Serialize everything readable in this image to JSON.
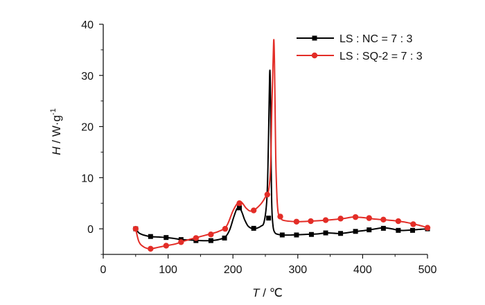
{
  "chart_data": {
    "type": "line",
    "title": "",
    "xlabel": {
      "var": "T",
      "unit": " / ℃"
    },
    "ylabel": {
      "var": "H",
      "unit": " / W·g",
      "sup": "-1"
    },
    "xlim": [
      0,
      500
    ],
    "ylim": [
      -5,
      40
    ],
    "xticks": [
      0,
      100,
      200,
      300,
      400,
      500
    ],
    "yticks": [
      0,
      10,
      20,
      30,
      40
    ],
    "grid": false,
    "legend_position": "top-right",
    "series": [
      {
        "name": "LS : NC = 7 : 3",
        "color": "#000000",
        "marker": "square",
        "x": [
          50,
          55,
          62,
          72,
          85,
          97,
          110,
          120,
          135,
          150,
          165,
          178,
          188,
          195,
          201,
          206,
          210,
          214,
          218,
          223,
          229,
          236,
          243,
          248,
          252,
          254,
          256,
          257,
          258,
          259,
          260,
          262,
          265,
          270,
          275,
          290,
          310,
          330,
          345,
          365,
          385,
          405,
          420,
          432,
          445,
          456,
          468,
          478,
          490,
          500
        ],
        "y": [
          0,
          -0.8,
          -1.2,
          -1.5,
          -1.6,
          -1.7,
          -1.9,
          -2.1,
          -2.2,
          -2.3,
          -2.3,
          -2.1,
          -1.6,
          -0.2,
          2.2,
          3.9,
          4.2,
          3.2,
          1.8,
          0.6,
          0.1,
          0.1,
          0.5,
          1.3,
          5.2,
          12.0,
          26.0,
          31.0,
          25.0,
          12.0,
          4.0,
          0.4,
          -0.8,
          -1.1,
          -1.2,
          -1.2,
          -1.1,
          -1.0,
          -0.8,
          -0.9,
          -0.6,
          -0.3,
          0.0,
          0.2,
          0.0,
          -0.3,
          -0.3,
          -0.2,
          -0.1,
          0.0
        ],
        "marker_x": [
          50,
          73,
          97,
          120,
          143,
          166,
          187,
          210,
          232,
          255,
          276,
          298,
          321,
          343,
          366,
          389,
          410,
          432,
          455,
          477,
          500
        ],
        "marker_y": [
          0,
          -1.5,
          -1.7,
          -2.1,
          -2.3,
          -2.3,
          -1.8,
          4.1,
          0.1,
          2.1,
          -1.2,
          -1.2,
          -1.1,
          -0.8,
          -0.9,
          -0.5,
          -0.2,
          0.1,
          -0.3,
          -0.3,
          0.0
        ]
      },
      {
        "name": "LS : SQ-2 = 7 : 3",
        "color": "#e32d27",
        "marker": "circle",
        "x": [
          50,
          55,
          62,
          72,
          85,
          97,
          110,
          122,
          135,
          150,
          165,
          178,
          190,
          200,
          207,
          212,
          216,
          220,
          226,
          232,
          238,
          244,
          250,
          255,
          258,
          260,
          262,
          263,
          264,
          265,
          266,
          268,
          270,
          274,
          280,
          300,
          320,
          345,
          370,
          385,
          400,
          420,
          440,
          455,
          470,
          480,
          490,
          500
        ],
        "y": [
          0,
          -2.5,
          -3.5,
          -3.9,
          -3.6,
          -3.3,
          -3.0,
          -2.5,
          -2.0,
          -1.5,
          -1.0,
          -0.5,
          0.5,
          3.5,
          5.0,
          5.3,
          4.8,
          4.1,
          3.5,
          3.6,
          4.2,
          5.0,
          6.2,
          7.5,
          12.0,
          24.0,
          33.0,
          37.0,
          33.0,
          24.0,
          14.0,
          6.0,
          3.0,
          2.0,
          1.6,
          1.4,
          1.5,
          1.7,
          2.0,
          2.3,
          2.2,
          1.9,
          1.7,
          1.5,
          1.2,
          0.9,
          0.6,
          0.2
        ],
        "marker_x": [
          50,
          73,
          97,
          120,
          143,
          166,
          188,
          210,
          232,
          253,
          273,
          298,
          320,
          343,
          366,
          389,
          410,
          432,
          455,
          478,
          500
        ],
        "marker_y": [
          0,
          -3.9,
          -3.3,
          -2.6,
          -1.8,
          -1.1,
          0.0,
          5.0,
          3.6,
          6.7,
          2.4,
          1.4,
          1.5,
          1.7,
          2.0,
          2.3,
          2.1,
          1.8,
          1.5,
          0.9,
          0.2
        ]
      }
    ]
  }
}
